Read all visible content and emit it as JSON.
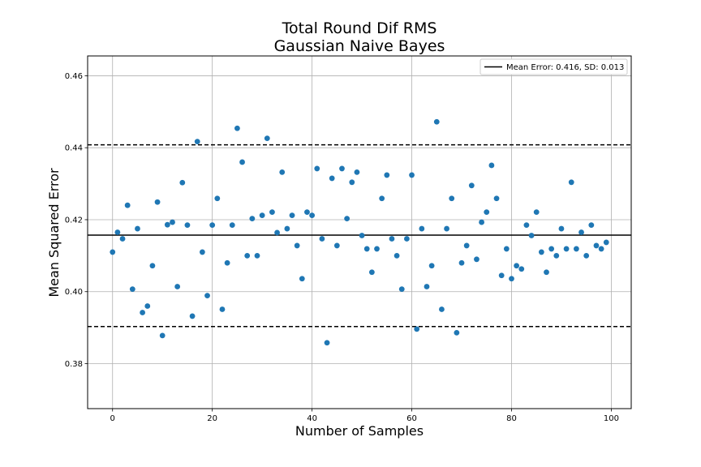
{
  "chart_data": {
    "type": "scatter",
    "title": "Total Round Dif RMS",
    "subtitle": "Gaussian Naive Bayes",
    "xlabel": "Number of Samples",
    "ylabel": "Mean Squared Error",
    "xlim": [
      -5,
      104
    ],
    "ylim": [
      0.3675,
      0.4655
    ],
    "xticks": [
      0,
      20,
      40,
      60,
      80,
      100
    ],
    "yticks": [
      0.38,
      0.4,
      0.42,
      0.44,
      0.46
    ],
    "xtick_labels": [
      "0",
      "20",
      "40",
      "60",
      "80",
      "100"
    ],
    "ytick_labels": [
      "0.38",
      "0.40",
      "0.42",
      "0.44",
      "0.46"
    ],
    "grid": true,
    "legend_position": "top-right",
    "legend_label": "Mean Error: 0.416, SD: 0.013",
    "marker_color": "#1f77b4",
    "mean": 0.4157,
    "upper_band": 0.4408,
    "lower_band": 0.3903,
    "series": [
      {
        "x": [
          0,
          1,
          2,
          3,
          4,
          5,
          6,
          7,
          8,
          9,
          10,
          11,
          12,
          13,
          14,
          15,
          16,
          17,
          18,
          19,
          20,
          21,
          22,
          23,
          24,
          25,
          26,
          27,
          28,
          29,
          30,
          31,
          32,
          33,
          34,
          35,
          36,
          37,
          38,
          39,
          40,
          41,
          42,
          43,
          44,
          45,
          46,
          47,
          48,
          49,
          50,
          51,
          52,
          53,
          54,
          55,
          56,
          57,
          58,
          59,
          60,
          61,
          62,
          63,
          64,
          65,
          66,
          67,
          68,
          69,
          70,
          71,
          72,
          73,
          74,
          75,
          76,
          77,
          78,
          79,
          80,
          81,
          82,
          83,
          84,
          85,
          86,
          87,
          88,
          89,
          90,
          91,
          92,
          93,
          94,
          95,
          96,
          97,
          98,
          99
        ],
        "y": [
          0.411,
          0.4165,
          0.4147,
          0.424,
          0.4007,
          0.4175,
          0.3942,
          0.396,
          0.4072,
          0.4249,
          0.3878,
          0.4186,
          0.4193,
          0.4014,
          0.4303,
          0.4185,
          0.3932,
          0.4417,
          0.411,
          0.3989,
          0.4185,
          0.4259,
          0.3951,
          0.408,
          0.4185,
          0.4454,
          0.436,
          0.41,
          0.4203,
          0.41,
          0.4212,
          0.4426,
          0.4221,
          0.4164,
          0.4332,
          0.4175,
          0.4212,
          0.4128,
          0.4036,
          0.4221,
          0.4212,
          0.4342,
          0.4147,
          0.3858,
          0.4315,
          0.4128,
          0.4342,
          0.4203,
          0.4304,
          0.4332,
          0.4156,
          0.4119,
          0.4054,
          0.4119,
          0.4259,
          0.4324,
          0.4147,
          0.41,
          0.4007,
          0.4147,
          0.4324,
          0.3896,
          0.4175,
          0.4014,
          0.4072,
          0.4472,
          0.3951,
          0.4175,
          0.4259,
          0.3886,
          0.408,
          0.4128,
          0.4295,
          0.409,
          0.4193,
          0.4221,
          0.4351,
          0.4259,
          0.4045,
          0.4119,
          0.4036,
          0.4072,
          0.4063,
          0.4185,
          0.4156,
          0.4221,
          0.411,
          0.4054,
          0.4119,
          0.41,
          0.4175,
          0.4119,
          0.4304,
          0.4119,
          0.4165,
          0.41,
          0.4185,
          0.4128,
          0.4119,
          0.4137
        ]
      }
    ]
  }
}
